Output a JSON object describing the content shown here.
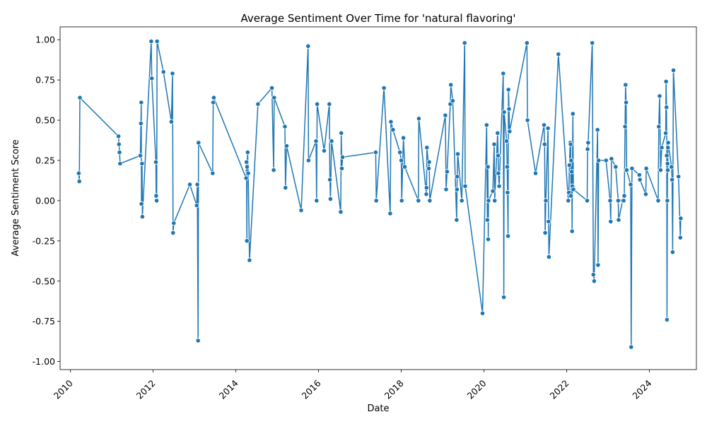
{
  "chart_data": {
    "type": "line",
    "title": "Average Sentiment Over Time for 'natural flavoring'",
    "xlabel": "Date",
    "ylabel": "Average Sentiment Score",
    "xlim": [
      "2009-10-01",
      "2025-02-20"
    ],
    "ylim": [
      -1.05,
      1.08
    ],
    "x_ticks": [
      "2010",
      "2012",
      "2014",
      "2016",
      "2018",
      "2020",
      "2022",
      "2024"
    ],
    "y_ticks": [
      "1.00",
      "0.75",
      "0.50",
      "0.25",
      "0.00",
      "-0.25",
      "-0.50",
      "-0.75",
      "-1.00"
    ],
    "grid": false,
    "line_color": "#1f77b4",
    "marker": "circle",
    "points": [
      [
        "2010-03-15",
        0.17
      ],
      [
        "2010-03-20",
        0.12
      ],
      [
        "2010-03-25",
        0.64
      ],
      [
        "2011-03-01",
        0.4
      ],
      [
        "2011-03-05",
        0.35
      ],
      [
        "2011-03-10",
        0.3
      ],
      [
        "2011-03-15",
        0.23
      ],
      [
        "2011-09-10",
        0.28
      ],
      [
        "2011-09-15",
        0.48
      ],
      [
        "2011-09-18",
        0.61
      ],
      [
        "2011-09-20",
        -0.02
      ],
      [
        "2011-09-25",
        0.23
      ],
      [
        "2011-09-28",
        -0.1
      ],
      [
        "2011-12-15",
        0.99
      ],
      [
        "2011-12-20",
        0.76
      ],
      [
        "2012-01-25",
        0.24
      ],
      [
        "2012-01-28",
        0.03
      ],
      [
        "2012-02-01",
        0.0
      ],
      [
        "2012-02-05",
        0.99
      ],
      [
        "2012-04-01",
        0.8
      ],
      [
        "2012-06-10",
        0.49
      ],
      [
        "2012-06-20",
        0.79
      ],
      [
        "2012-06-25",
        -0.2
      ],
      [
        "2012-07-01",
        -0.14
      ],
      [
        "2012-11-20",
        0.1
      ],
      [
        "2013-01-20",
        -0.03
      ],
      [
        "2013-01-25",
        0.1
      ],
      [
        "2013-02-01",
        -0.87
      ],
      [
        "2013-02-05",
        0.36
      ],
      [
        "2013-06-10",
        0.17
      ],
      [
        "2013-06-15",
        0.61
      ],
      [
        "2013-06-20",
        0.64
      ],
      [
        "2014-04-01",
        0.14
      ],
      [
        "2014-04-05",
        0.24
      ],
      [
        "2014-04-08",
        -0.25
      ],
      [
        "2014-04-10",
        0.21
      ],
      [
        "2014-04-15",
        0.3
      ],
      [
        "2014-04-20",
        0.17
      ],
      [
        "2014-05-01",
        -0.37
      ],
      [
        "2014-07-15",
        0.6
      ],
      [
        "2014-11-15",
        0.7
      ],
      [
        "2014-12-01",
        0.19
      ],
      [
        "2014-12-05",
        0.64
      ],
      [
        "2015-03-10",
        0.46
      ],
      [
        "2015-03-15",
        0.08
      ],
      [
        "2015-03-25",
        0.34
      ],
      [
        "2015-08-01",
        -0.06
      ],
      [
        "2015-10-01",
        0.96
      ],
      [
        "2015-10-05",
        0.25
      ],
      [
        "2015-12-10",
        0.37
      ],
      [
        "2015-12-15",
        0.0
      ],
      [
        "2015-12-20",
        0.6
      ],
      [
        "2016-02-20",
        0.31
      ],
      [
        "2016-04-05",
        0.6
      ],
      [
        "2016-04-10",
        0.13
      ],
      [
        "2016-04-15",
        0.01
      ],
      [
        "2016-04-25",
        0.37
      ],
      [
        "2016-07-15",
        -0.07
      ],
      [
        "2016-07-20",
        0.42
      ],
      [
        "2016-07-25",
        0.2
      ],
      [
        "2016-08-01",
        0.27
      ],
      [
        "2017-05-20",
        0.3
      ],
      [
        "2017-05-25",
        0.0
      ],
      [
        "2017-08-01",
        0.7
      ],
      [
        "2017-09-25",
        -0.08
      ],
      [
        "2017-10-01",
        0.49
      ],
      [
        "2017-10-20",
        0.44
      ],
      [
        "2017-12-20",
        0.3
      ],
      [
        "2018-01-01",
        0.25
      ],
      [
        "2018-01-05",
        0.0
      ],
      [
        "2018-01-20",
        0.39
      ],
      [
        "2018-02-01",
        0.21
      ],
      [
        "2018-06-01",
        0.0
      ],
      [
        "2018-06-05",
        0.51
      ],
      [
        "2018-08-10",
        0.04
      ],
      [
        "2018-08-12",
        0.08
      ],
      [
        "2018-08-15",
        0.33
      ],
      [
        "2018-09-01",
        0.2
      ],
      [
        "2018-09-05",
        0.24
      ],
      [
        "2018-09-10",
        0.0
      ],
      [
        "2019-01-25",
        0.53
      ],
      [
        "2019-02-01",
        0.07
      ],
      [
        "2019-02-10",
        0.18
      ],
      [
        "2019-03-10",
        0.6
      ],
      [
        "2019-03-15",
        0.72
      ],
      [
        "2019-04-01",
        0.62
      ],
      [
        "2019-05-05",
        -0.12
      ],
      [
        "2019-05-08",
        0.07
      ],
      [
        "2019-05-10",
        0.15
      ],
      [
        "2019-05-15",
        0.29
      ],
      [
        "2019-06-20",
        0.0
      ],
      [
        "2019-07-15",
        0.98
      ],
      [
        "2019-07-20",
        0.09
      ],
      [
        "2019-12-20",
        -0.7
      ],
      [
        "2020-01-25",
        0.47
      ],
      [
        "2020-02-01",
        -0.12
      ],
      [
        "2020-02-05",
        0.21
      ],
      [
        "2020-02-08",
        -0.24
      ],
      [
        "2020-02-10",
        0.0
      ],
      [
        "2020-03-20",
        0.06
      ],
      [
        "2020-04-01",
        0.35
      ],
      [
        "2020-04-05",
        0.0
      ],
      [
        "2020-05-01",
        0.42
      ],
      [
        "2020-05-05",
        0.28
      ],
      [
        "2020-05-08",
        0.17
      ],
      [
        "2020-05-15",
        0.09
      ],
      [
        "2020-06-20",
        0.79
      ],
      [
        "2020-06-25",
        -0.6
      ],
      [
        "2020-06-28",
        0.55
      ],
      [
        "2020-07-20",
        0.37
      ],
      [
        "2020-07-25",
        0.21
      ],
      [
        "2020-07-28",
        0.05
      ],
      [
        "2020-08-01",
        -0.22
      ],
      [
        "2020-08-05",
        0.69
      ],
      [
        "2020-08-10",
        0.57
      ],
      [
        "2020-08-15",
        0.43
      ],
      [
        "2021-01-15",
        0.98
      ],
      [
        "2021-01-20",
        0.5
      ],
      [
        "2021-04-01",
        0.17
      ],
      [
        "2021-06-15",
        0.47
      ],
      [
        "2021-06-20",
        0.35
      ],
      [
        "2021-06-25",
        -0.2
      ],
      [
        "2021-07-01",
        0.0
      ],
      [
        "2021-07-20",
        0.45
      ],
      [
        "2021-07-25",
        -0.13
      ],
      [
        "2021-07-28",
        -0.35
      ],
      [
        "2021-10-20",
        0.91
      ],
      [
        "2022-01-15",
        0.0
      ],
      [
        "2022-01-20",
        0.05
      ],
      [
        "2022-01-25",
        0.22
      ],
      [
        "2022-02-01",
        0.36
      ],
      [
        "2022-02-05",
        0.35
      ],
      [
        "2022-02-08",
        0.03
      ],
      [
        "2022-02-10",
        0.25
      ],
      [
        "2022-02-15",
        0.18
      ],
      [
        "2022-02-18",
        -0.19
      ],
      [
        "2022-02-20",
        0.09
      ],
      [
        "2022-02-25",
        0.54
      ],
      [
        "2022-03-01",
        0.07
      ],
      [
        "2022-07-01",
        0.0
      ],
      [
        "2022-07-05",
        0.32
      ],
      [
        "2022-07-10",
        0.36
      ],
      [
        "2022-08-15",
        0.98
      ],
      [
        "2022-08-25",
        -0.46
      ],
      [
        "2022-09-01",
        -0.5
      ],
      [
        "2022-10-01",
        0.44
      ],
      [
        "2022-10-05",
        -0.4
      ],
      [
        "2022-10-10",
        0.25
      ],
      [
        "2022-12-15",
        0.25
      ],
      [
        "2023-01-20",
        0.0
      ],
      [
        "2023-01-25",
        -0.13
      ],
      [
        "2023-02-01",
        0.26
      ],
      [
        "2023-03-10",
        0.21
      ],
      [
        "2023-04-01",
        0.0
      ],
      [
        "2023-04-05",
        -0.12
      ],
      [
        "2023-05-10",
        0.0
      ],
      [
        "2023-05-20",
        0.0
      ],
      [
        "2023-05-25",
        0.03
      ],
      [
        "2023-06-01",
        0.46
      ],
      [
        "2023-06-05",
        0.72
      ],
      [
        "2023-06-10",
        0.61
      ],
      [
        "2023-06-15",
        0.19
      ],
      [
        "2023-07-20",
        0.1
      ],
      [
        "2023-07-25",
        -0.91
      ],
      [
        "2023-08-01",
        0.2
      ],
      [
        "2023-10-05",
        0.16
      ],
      [
        "2023-10-10",
        0.13
      ],
      [
        "2023-12-01",
        0.04
      ],
      [
        "2023-12-05",
        0.2
      ],
      [
        "2024-03-20",
        0.0
      ],
      [
        "2024-03-25",
        0.46
      ],
      [
        "2024-04-01",
        0.65
      ],
      [
        "2024-04-10",
        0.19
      ],
      [
        "2024-04-20",
        0.33
      ],
      [
        "2024-05-25",
        0.42
      ],
      [
        "2024-05-28",
        0.74
      ],
      [
        "2024-06-01",
        0.58
      ],
      [
        "2024-06-03",
        0.28
      ],
      [
        "2024-06-05",
        -0.74
      ],
      [
        "2024-06-08",
        0.0
      ],
      [
        "2024-06-10",
        0.23
      ],
      [
        "2024-06-12",
        0.19
      ],
      [
        "2024-06-14",
        0.33
      ],
      [
        "2024-06-16",
        0.36
      ],
      [
        "2024-07-15",
        0.21
      ],
      [
        "2024-07-20",
        0.13
      ],
      [
        "2024-07-25",
        -0.32
      ],
      [
        "2024-08-01",
        0.81
      ],
      [
        "2024-09-15",
        0.15
      ],
      [
        "2024-10-01",
        -0.23
      ],
      [
        "2024-10-05",
        -0.11
      ]
    ]
  }
}
